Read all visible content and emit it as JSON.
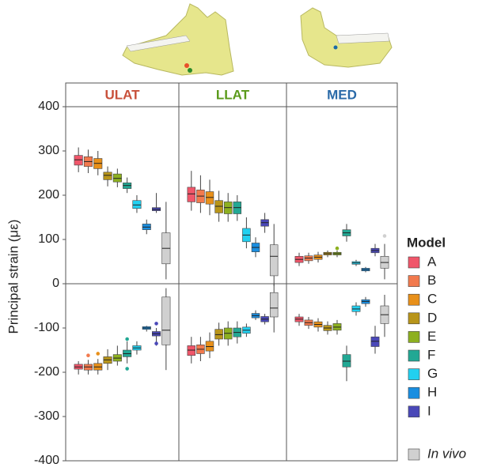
{
  "chart_data": {
    "type": "box",
    "y_label": "Principal strain (με)",
    "ylim": [
      -400,
      400
    ],
    "yticks": [
      -400,
      -300,
      -200,
      -100,
      0,
      100,
      200,
      300,
      400
    ],
    "legend_title": "Model",
    "models": [
      {
        "name": "A",
        "color": "#f0566a"
      },
      {
        "name": "B",
        "color": "#f27a4e"
      },
      {
        "name": "C",
        "color": "#e8901a"
      },
      {
        "name": "D",
        "color": "#b8951a"
      },
      {
        "name": "E",
        "color": "#8db020"
      },
      {
        "name": "F",
        "color": "#22a894"
      },
      {
        "name": "G",
        "color": "#22d0f0"
      },
      {
        "name": "H",
        "color": "#1a8ee0"
      },
      {
        "name": "I",
        "color": "#4a48b8"
      },
      {
        "name": "In vivo",
        "color": "#d0d0d0"
      }
    ],
    "panels": [
      {
        "title": "ULAT",
        "title_color": "#c8503a",
        "positive": [
          {
            "stats": [
              252,
              268,
              280,
              290,
              308
            ]
          },
          {
            "stats": [
              250,
              265,
              276,
              287,
              303
            ]
          },
          {
            "stats": [
              245,
              260,
              272,
              283,
              300
            ]
          },
          {
            "stats": [
              220,
              235,
              245,
              252,
              265
            ]
          },
          {
            "stats": [
              218,
              230,
              238,
              248,
              260
            ]
          },
          {
            "stats": [
              205,
              215,
              222,
              228,
              240
            ]
          },
          {
            "stats": [
              160,
              170,
              178,
              188,
              200
            ]
          },
          {
            "stats": [
              112,
              122,
              128,
              135,
              145
            ]
          },
          {
            "stats": [
              160,
              165,
              168,
              172,
              205
            ]
          },
          {
            "stats": [
              10,
              45,
              80,
              115,
              185
            ]
          }
        ],
        "negative": [
          {
            "stats": [
              -205,
              -193,
              -188,
              -182,
              -175
            ]
          },
          {
            "stats": [
              -205,
              -195,
              -188,
              -182,
              -172
            ],
            "outliers": [
              -162
            ]
          },
          {
            "stats": [
              -205,
              -195,
              -188,
              -180,
              -170
            ],
            "outliers": [
              -158
            ]
          },
          {
            "stats": [
              -195,
              -180,
              -172,
              -165,
              -148
            ]
          },
          {
            "stats": [
              -185,
              -175,
              -168,
              -160,
              -140
            ]
          },
          {
            "stats": [
              -180,
              -165,
              -158,
              -150,
              -130
            ],
            "outliers": [
              -125,
              -192
            ]
          },
          {
            "stats": [
              -160,
              -150,
              -145,
              -140,
              -130
            ]
          },
          {
            "stats": [
              -108,
              -103,
              -100,
              -97,
              -95
            ]
          },
          {
            "stats": [
              -140,
              -118,
              -113,
              -108,
              -100
            ],
            "outliers": [
              -90,
              -135
            ]
          },
          {
            "stats": [
              -195,
              -138,
              -105,
              -30,
              -10
            ]
          }
        ]
      },
      {
        "title": "LLAT",
        "title_color": "#5a9a1a",
        "positive": [
          {
            "stats": [
              165,
              185,
              203,
              218,
              255
            ]
          },
          {
            "stats": [
              160,
              183,
              198,
              212,
              245
            ]
          },
          {
            "stats": [
              155,
              180,
              195,
              208,
              235
            ]
          },
          {
            "stats": [
              140,
              160,
              175,
              188,
              210
            ]
          },
          {
            "stats": [
              140,
              158,
              172,
              185,
              205
            ]
          },
          {
            "stats": [
              142,
              158,
              172,
              185,
              200
            ]
          },
          {
            "stats": [
              80,
              95,
              110,
              125,
              150
            ]
          },
          {
            "stats": [
              60,
              72,
              82,
              92,
              105
            ]
          },
          {
            "stats": [
              115,
              130,
              138,
              145,
              160
            ]
          },
          {
            "stats": [
              -5,
              18,
              62,
              88,
              135
            ]
          }
        ],
        "negative": [
          {
            "stats": [
              -180,
              -162,
              -150,
              -140,
              -120
            ]
          },
          {
            "stats": [
              -175,
              -158,
              -148,
              -138,
              -120
            ]
          },
          {
            "stats": [
              -168,
              -152,
              -142,
              -130,
              -110
            ]
          },
          {
            "stats": [
              -140,
              -125,
              -115,
              -103,
              -88
            ]
          },
          {
            "stats": [
              -140,
              -125,
              -112,
              -100,
              -85
            ]
          },
          {
            "stats": [
              -135,
              -120,
              -110,
              -100,
              -85
            ]
          },
          {
            "stats": [
              -120,
              -112,
              -105,
              -98,
              -90
            ]
          },
          {
            "stats": [
              -82,
              -77,
              -72,
              -67,
              -60
            ]
          },
          {
            "stats": [
              -92,
              -86,
              -80,
              -74,
              -68
            ]
          },
          {
            "stats": [
              -110,
              -75,
              -55,
              -20,
              0
            ]
          }
        ]
      },
      {
        "title": "MED",
        "title_color": "#2a6aa8",
        "positive": [
          {
            "stats": [
              40,
              48,
              55,
              62,
              70
            ]
          },
          {
            "stats": [
              45,
              52,
              58,
              63,
              70
            ]
          },
          {
            "stats": [
              48,
              55,
              60,
              65,
              72
            ]
          },
          {
            "stats": [
              60,
              65,
              68,
              71,
              75
            ]
          },
          {
            "stats": [
              60,
              65,
              68,
              71,
              75
            ],
            "outliers": [
              80
            ]
          },
          {
            "stats": [
              95,
              108,
              115,
              122,
              135
            ]
          },
          {
            "stats": [
              40,
              44,
              47,
              50,
              54
            ]
          },
          {
            "stats": [
              26,
              29,
              32,
              35,
              38
            ]
          },
          {
            "stats": [
              62,
              70,
              75,
              80,
              90
            ]
          },
          {
            "stats": [
              10,
              35,
              48,
              62,
              90
            ],
            "outliers": [
              108
            ]
          }
        ],
        "negative": [
          {
            "stats": [
              -95,
              -86,
              -80,
              -75,
              -68
            ]
          },
          {
            "stats": [
              -102,
              -94,
              -88,
              -82,
              -75
            ]
          },
          {
            "stats": [
              -108,
              -98,
              -92,
              -86,
              -78
            ]
          },
          {
            "stats": [
              -115,
              -106,
              -100,
              -94,
              -85
            ]
          },
          {
            "stats": [
              -115,
              -105,
              -98,
              -90,
              -82
            ]
          },
          {
            "stats": [
              -220,
              -188,
              -175,
              -160,
              -140
            ]
          },
          {
            "stats": [
              -72,
              -63,
              -57,
              -50,
              -42
            ]
          },
          {
            "stats": [
              -52,
              -45,
              -40,
              -36,
              -30
            ]
          },
          {
            "stats": [
              -158,
              -142,
              -130,
              -120,
              -95
            ]
          },
          {
            "stats": [
              -120,
              -90,
              -70,
              -50,
              -25
            ]
          }
        ]
      }
    ]
  }
}
